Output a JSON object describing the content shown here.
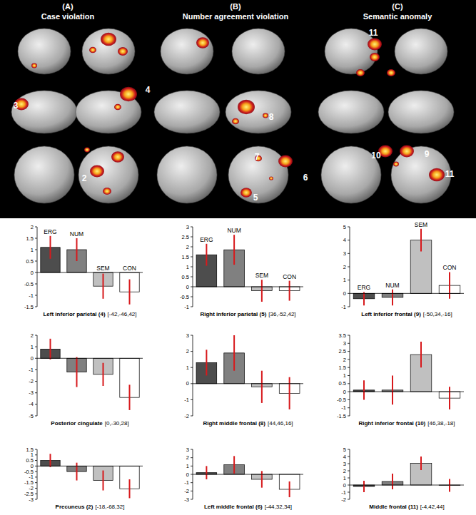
{
  "chart_data": [
    {
      "type": "bar",
      "title": "Left inferior parietal (4)",
      "subtitle": "[-42,-46,42]",
      "categories": [
        "ERG",
        "NUM",
        "SEM",
        "CON"
      ],
      "values": [
        1.1,
        1.0,
        -0.6,
        -0.85
      ],
      "errors": [
        0.5,
        0.5,
        0.55,
        0.55
      ],
      "colors": [
        "#4d4d4d",
        "#808080",
        "#c0c0c0",
        "#ffffff"
      ],
      "ylim": [
        -1.5,
        2
      ],
      "yticks": [
        -1.5,
        -1,
        -0.5,
        0,
        0.5,
        1,
        1.5,
        2
      ]
    },
    {
      "type": "bar",
      "title": "Right inferior parietal (5)",
      "subtitle": "[36,-52,42]",
      "categories": [
        "ERG",
        "NUM",
        "SEM",
        "CON"
      ],
      "values": [
        1.6,
        1.85,
        -0.2,
        -0.2
      ],
      "errors": [
        0.55,
        0.75,
        0.55,
        0.5
      ],
      "colors": [
        "#4d4d4d",
        "#808080",
        "#c0c0c0",
        "#ffffff"
      ],
      "ylim": [
        -1,
        3
      ],
      "yticks": [
        -1,
        -0.5,
        0,
        0.5,
        1,
        1.5,
        2,
        2.5,
        3
      ]
    },
    {
      "type": "bar",
      "title": "Left inferior frontal (9)",
      "subtitle": "[-50,34,-16]",
      "categories": [
        "ERG",
        "NUM",
        "SEM",
        "CON"
      ],
      "values": [
        -0.4,
        -0.3,
        4.0,
        0.6
      ],
      "errors": [
        0.5,
        0.6,
        0.85,
        1.0
      ],
      "colors": [
        "#4d4d4d",
        "#808080",
        "#c0c0c0",
        "#ffffff"
      ],
      "ylim": [
        -1,
        5
      ],
      "yticks": [
        -1,
        0,
        1,
        2,
        3,
        4,
        5
      ]
    },
    {
      "type": "bar",
      "title": "Posterior cingulate",
      "subtitle": "[0,-30,28]",
      "categories": [
        null,
        null,
        null,
        null
      ],
      "values": [
        0.8,
        -1.2,
        -1.4,
        -3.4
      ],
      "errors": [
        0.9,
        1.3,
        1.0,
        1.1
      ],
      "colors": [
        "#4d4d4d",
        "#808080",
        "#c0c0c0",
        "#ffffff"
      ],
      "ylim": [
        -5,
        2
      ],
      "yticks": [
        -5,
        -4,
        -3,
        -2,
        -1,
        0,
        1,
        2
      ]
    },
    {
      "type": "bar",
      "title": "Right middle frontal (8)",
      "subtitle": "[44,46,16]",
      "categories": [
        null,
        null,
        null,
        null
      ],
      "values": [
        1.3,
        1.9,
        -0.2,
        -0.6
      ],
      "errors": [
        0.8,
        1.1,
        1.0,
        1.0
      ],
      "colors": [
        "#4d4d4d",
        "#808080",
        "#c0c0c0",
        "#ffffff"
      ],
      "ylim": [
        -2,
        3
      ],
      "yticks": [
        -2,
        -1,
        0,
        1,
        2,
        3
      ]
    },
    {
      "type": "bar",
      "title": "Right inferior frontal (10)",
      "subtitle": "[46,38,-18]",
      "categories": [
        null,
        null,
        null,
        null
      ],
      "values": [
        0.1,
        0.1,
        2.3,
        -0.4
      ],
      "errors": [
        0.6,
        0.9,
        0.8,
        0.7
      ],
      "colors": [
        "#4d4d4d",
        "#808080",
        "#c0c0c0",
        "#ffffff"
      ],
      "ylim": [
        -1.5,
        3.5
      ],
      "yticks": [
        -1.5,
        -1,
        -0.5,
        0,
        0.5,
        1,
        1.5,
        2,
        2.5,
        3,
        3.5
      ]
    },
    {
      "type": "bar",
      "title": "Precuneus (2)",
      "subtitle": "[-18,-68,32]",
      "categories": [
        null,
        null,
        null,
        null
      ],
      "values": [
        0.5,
        -0.5,
        -1.3,
        -2.05
      ],
      "errors": [
        0.6,
        0.8,
        0.9,
        0.85
      ],
      "colors": [
        "#4d4d4d",
        "#808080",
        "#c0c0c0",
        "#ffffff"
      ],
      "ylim": [
        -3,
        1.5
      ],
      "yticks": [
        -3,
        -2.5,
        -2,
        -1.5,
        -1,
        -0.5,
        0,
        0.5,
        1,
        1.5
      ]
    },
    {
      "type": "bar",
      "title": "Left middle frontal (6)",
      "subtitle": "[-44,32,34]",
      "categories": [
        null,
        null,
        null,
        null
      ],
      "values": [
        0.2,
        1.15,
        -0.6,
        -1.8
      ],
      "errors": [
        0.8,
        1.05,
        1.0,
        0.95
      ],
      "colors": [
        "#4d4d4d",
        "#808080",
        "#c0c0c0",
        "#ffffff"
      ],
      "ylim": [
        -3,
        3
      ],
      "yticks": [
        -3,
        -2,
        -1,
        0,
        1,
        2,
        3
      ]
    },
    {
      "type": "bar",
      "title": "Middle frontal (11)",
      "subtitle": "[-4,42,44]",
      "categories": [
        null,
        null,
        null,
        null
      ],
      "values": [
        -0.2,
        0.5,
        3.05,
        -0.05
      ],
      "errors": [
        0.8,
        1.1,
        0.95,
        0.9
      ],
      "colors": [
        "#4d4d4d",
        "#808080",
        "#c0c0c0",
        "#ffffff"
      ],
      "ylim": [
        -2,
        5
      ],
      "yticks": [
        -2,
        -1,
        0,
        1,
        2,
        3,
        4,
        5
      ]
    }
  ],
  "brain_panels": [
    {
      "letter": "(A)",
      "title": "Case violation",
      "region_labels": [
        3,
        4,
        2
      ]
    },
    {
      "letter": "(B)",
      "title": "Number agreement violation",
      "region_labels": [
        8,
        7,
        6,
        5
      ]
    },
    {
      "letter": "(C)",
      "title": "Semantic anomaly",
      "region_labels": [
        11,
        10,
        9,
        11
      ]
    }
  ]
}
